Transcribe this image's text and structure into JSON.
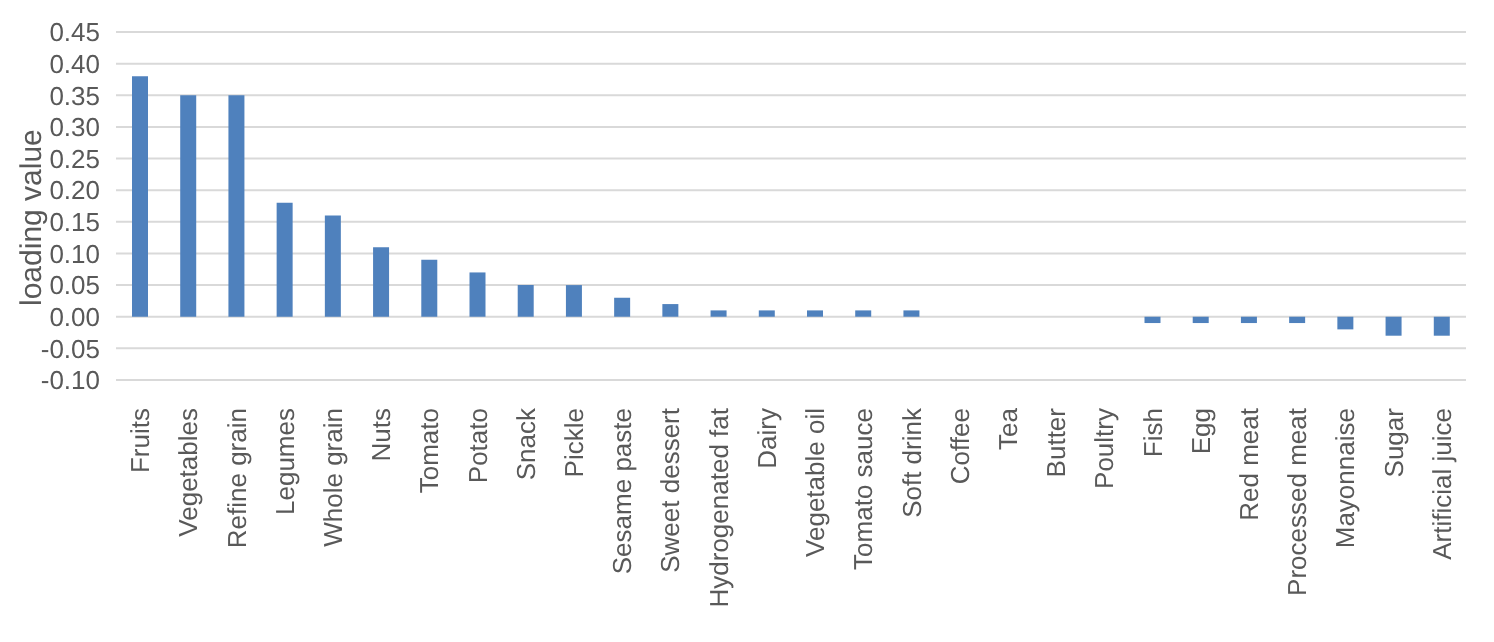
{
  "chart_data": {
    "type": "bar",
    "ylabel": "loading value",
    "categories": [
      "Fruits",
      "Vegetables",
      "Refine grain",
      "Legumes",
      "Whole grain",
      "Nuts",
      "Tomato",
      "Potato",
      "Snack",
      "Pickle",
      "Sesame paste",
      "Sweet dessert",
      "Hydrogenated fat",
      "Dairy",
      "Vegetable oil",
      "Tomato sauce",
      "Soft drink",
      "Coffee",
      "Tea",
      "Butter",
      "Poultry",
      "Fish",
      "Egg",
      "Red meat",
      "Processed meat",
      "Mayonnaise",
      "Sugar",
      "Artificial juice"
    ],
    "values": [
      0.38,
      0.35,
      0.35,
      0.18,
      0.16,
      0.11,
      0.09,
      0.07,
      0.05,
      0.05,
      0.03,
      0.02,
      0.01,
      0.01,
      0.01,
      0.01,
      0.01,
      0,
      0,
      0,
      0,
      -0.01,
      -0.01,
      -0.01,
      -0.01,
      -0.02,
      -0.03,
      -0.03
    ],
    "color": "#4f81bd",
    "ylim": [
      -0.1,
      0.45
    ],
    "yticks": [
      {
        "value": -0.1,
        "label": "-0.10"
      },
      -0.05,
      {
        "value": 0,
        "label": "0.00"
      },
      0.05,
      {
        "value": 0.1,
        "label": "0.10"
      },
      0.15,
      {
        "value": 0.2,
        "label": "0.20"
      },
      0.25,
      {
        "value": 0.3,
        "label": "0.30"
      },
      0.35,
      {
        "value": 0.4,
        "label": "0.40"
      },
      0.45
    ],
    "grid": "y",
    "legend": false
  }
}
